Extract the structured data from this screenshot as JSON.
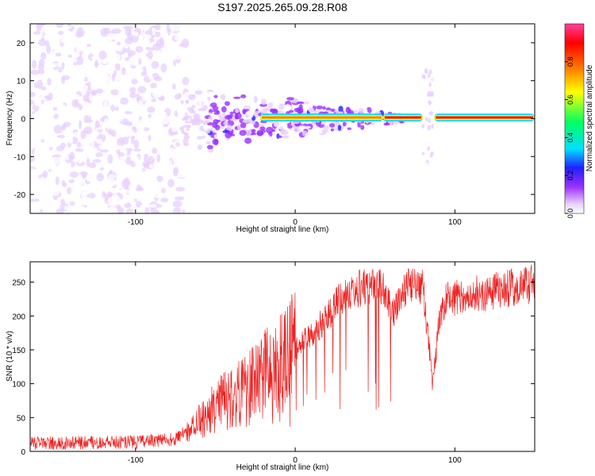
{
  "figure": {
    "title": "S197.2025.265.09.28.R08"
  },
  "chart_data": [
    {
      "type": "heatmap",
      "name": "spectrogram",
      "xlabel": "Height of straight line (km)",
      "ylabel": "Frequency (Hz)",
      "xlim": [
        -166,
        150
      ],
      "ylim": [
        -25,
        25
      ],
      "xticks": [
        -100,
        0,
        100
      ],
      "yticks": [
        -20,
        -10,
        0,
        10,
        20
      ],
      "colorbar": {
        "label": "Normalized spectral amplitude",
        "range": [
          0.0,
          1.0
        ],
        "ticks": [
          0.0,
          0.2,
          0.4,
          0.6,
          0.8
        ],
        "tick_labels": [
          "0.0",
          "0.2",
          "0.4",
          "0.6",
          "0.8"
        ],
        "colormap": [
          "#ffffff",
          "#e8d0ff",
          "#9b30ff",
          "#2020ff",
          "#00e0ff",
          "#00ff60",
          "#ffff00",
          "#ff8000",
          "#ff0000",
          "#ff40a0"
        ]
      },
      "signal_segments": [
        {
          "x": [
            -22,
            55
          ],
          "freq": 0.3,
          "amplitude": 0.85
        },
        {
          "x": [
            55,
            80
          ],
          "freq": 0.3,
          "amplitude": 0.95
        },
        {
          "x": [
            87,
            150
          ],
          "freq": 0.3,
          "amplitude": 0.9
        }
      ],
      "noise_region": {
        "x": [
          -166,
          -68
        ],
        "freq_spread": 25
      }
    },
    {
      "type": "line",
      "name": "snr",
      "xlabel": "Height of straight line (km)",
      "ylabel": "SNR (10 * v/v)",
      "xlim": [
        -166,
        150
      ],
      "ylim": [
        0,
        280
      ],
      "xticks": [
        -100,
        0,
        100
      ],
      "yticks": [
        0,
        50,
        100,
        150,
        200,
        250
      ],
      "color": "#ee2222",
      "trend": [
        {
          "x": -166,
          "y": 12
        },
        {
          "x": -100,
          "y": 14
        },
        {
          "x": -75,
          "y": 18
        },
        {
          "x": -60,
          "y": 45
        },
        {
          "x": -45,
          "y": 75
        },
        {
          "x": -30,
          "y": 90
        },
        {
          "x": -15,
          "y": 125
        },
        {
          "x": 0,
          "y": 150
        },
        {
          "x": 15,
          "y": 185
        },
        {
          "x": 30,
          "y": 230
        },
        {
          "x": 45,
          "y": 245
        },
        {
          "x": 55,
          "y": 240
        },
        {
          "x": 62,
          "y": 205
        },
        {
          "x": 68,
          "y": 242
        },
        {
          "x": 80,
          "y": 240
        },
        {
          "x": 83,
          "y": 180
        },
        {
          "x": 86,
          "y": 95
        },
        {
          "x": 90,
          "y": 190
        },
        {
          "x": 95,
          "y": 225
        },
        {
          "x": 120,
          "y": 235
        },
        {
          "x": 150,
          "y": 248
        }
      ]
    }
  ]
}
